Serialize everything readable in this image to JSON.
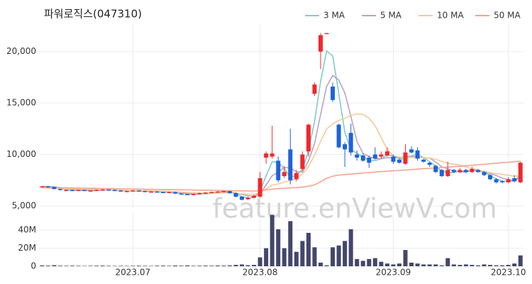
{
  "chart_data": [
    {
      "type": "candlestick",
      "title": "파워로직스(047310)",
      "watermark": "feature.enViewV.com",
      "up_color": "#f0282d",
      "down_color": "#1f63d8",
      "open": [
        6850,
        6900,
        6850,
        6650,
        6550,
        6550,
        6500,
        6550,
        6500,
        6500,
        6550,
        6600,
        6550,
        6500,
        6450,
        6450,
        6500,
        6450,
        6400,
        6400,
        6350,
        6300,
        6350,
        6200,
        6150,
        6100,
        6150,
        6250,
        6300,
        6350,
        6400,
        6450,
        6250,
        5900,
        5650,
        5800,
        5900,
        9700,
        9800,
        9400,
        7900,
        10500,
        7600,
        8600,
        10300,
        15900,
        20000,
        21800,
        16600,
        12900,
        11000,
        12100,
        10000,
        9900,
        9700,
        10000,
        9800,
        9900,
        9800,
        9500,
        9100,
        10500,
        10400,
        9500,
        9200,
        8900,
        8500,
        7900,
        8500,
        8300,
        8500,
        8300,
        8500,
        8300,
        8000,
        7600,
        7400,
        7300,
        7700,
        7300
      ],
      "high": [
        6950,
        6950,
        6900,
        6700,
        6600,
        6600,
        6600,
        6600,
        6550,
        6600,
        6650,
        6650,
        6600,
        6550,
        6500,
        6550,
        6550,
        6500,
        6450,
        6450,
        6400,
        6400,
        6400,
        6250,
        6200,
        6200,
        6300,
        6350,
        6400,
        6450,
        6500,
        6450,
        6300,
        5950,
        5900,
        6100,
        8300,
        10300,
        12800,
        9800,
        8900,
        12500,
        8500,
        10300,
        13000,
        17000,
        21800,
        21800,
        17000,
        13000,
        11200,
        13000,
        10400,
        10100,
        9900,
        10700,
        10300,
        10700,
        10000,
        9600,
        11000,
        10800,
        10700,
        9600,
        9300,
        9000,
        8600,
        9300,
        8600,
        8700,
        8600,
        8800,
        8600,
        8400,
        8100,
        7700,
        7500,
        7800,
        8000,
        9300
      ],
      "low": [
        6800,
        6800,
        6600,
        6500,
        6500,
        6450,
        6450,
        6450,
        6450,
        6450,
        6500,
        6500,
        6450,
        6400,
        6400,
        6400,
        6400,
        6350,
        6350,
        6300,
        6250,
        6250,
        6150,
        6100,
        6050,
        6050,
        6100,
        6200,
        6250,
        6300,
        6350,
        6200,
        5850,
        5550,
        5600,
        5750,
        5800,
        9100,
        9600,
        7300,
        7700,
        7100,
        7400,
        8400,
        9800,
        15700,
        18300,
        21800,
        15100,
        10600,
        8800,
        9900,
        9400,
        9300,
        8700,
        9500,
        9600,
        9800,
        9100,
        9100,
        9000,
        10100,
        9400,
        9200,
        8800,
        8200,
        7800,
        7800,
        8200,
        8200,
        8200,
        8200,
        8200,
        7900,
        7500,
        7200,
        7200,
        7200,
        7300,
        7200
      ],
      "close": [
        6900,
        6850,
        6650,
        6550,
        6550,
        6500,
        6550,
        6500,
        6500,
        6550,
        6600,
        6550,
        6500,
        6450,
        6450,
        6500,
        6450,
        6400,
        6400,
        6350,
        6300,
        6350,
        6200,
        6150,
        6100,
        6150,
        6250,
        6300,
        6350,
        6400,
        6450,
        6250,
        5900,
        5600,
        5800,
        6000,
        7700,
        10100,
        10100,
        7500,
        8300,
        7500,
        8200,
        10000,
        12900,
        16800,
        21600,
        21800,
        15300,
        10700,
        10500,
        10200,
        9700,
        9400,
        9200,
        9600,
        10000,
        10300,
        9300,
        9200,
        10200,
        10200,
        9600,
        9300,
        9000,
        8300,
        7900,
        8500,
        8300,
        8500,
        8300,
        8600,
        8300,
        8000,
        7600,
        7300,
        7300,
        7600,
        7400,
        9200
      ],
      "series": [
        {
          "name": "3 MA",
          "color": "#7fcdc7",
          "values": [
            6900,
            6880,
            6800,
            6683,
            6583,
            6533,
            6533,
            6517,
            6517,
            6517,
            6550,
            6567,
            6550,
            6500,
            6467,
            6467,
            6467,
            6450,
            6417,
            6383,
            6350,
            6333,
            6283,
            6233,
            6150,
            6133,
            6167,
            6233,
            6300,
            6350,
            6400,
            6367,
            6200,
            5917,
            5767,
            5800,
            6500,
            7933,
            9300,
            9233,
            8633,
            7767,
            8000,
            8567,
            10367,
            13233,
            17100,
            20067,
            19567,
            15933,
            12167,
            10467,
            10133,
            9767,
            9433,
            9400,
            9600,
            9967,
            9867,
            9600,
            9567,
            9867,
            10000,
            9700,
            9300,
            8867,
            8400,
            8233,
            8233,
            8433,
            8367,
            8467,
            8400,
            8300,
            7967,
            7633,
            7400,
            7400,
            7433,
            8067
          ]
        },
        {
          "name": "5 MA",
          "color": "#b7a3c9",
          "values": [
            6900,
            6890,
            6850,
            6790,
            6700,
            6620,
            6560,
            6530,
            6520,
            6520,
            6540,
            6540,
            6540,
            6530,
            6510,
            6490,
            6470,
            6450,
            6440,
            6420,
            6380,
            6360,
            6320,
            6270,
            6220,
            6190,
            6170,
            6190,
            6230,
            6290,
            6350,
            6350,
            6270,
            6120,
            6000,
            5910,
            6200,
            7040,
            7940,
            8280,
            8740,
            8700,
            8320,
            8300,
            9380,
            11080,
            13900,
            16620,
            17680,
            17240,
            15980,
            13700,
            11280,
            10100,
            9800,
            9620,
            9580,
            9700,
            9680,
            9680,
            9800,
            9840,
            9700,
            9700,
            9660,
            9280,
            8820,
            8600,
            8400,
            8300,
            8300,
            8440,
            8400,
            8340,
            8160,
            7960,
            7700,
            7560,
            7440,
            7760
          ]
        },
        {
          "name": "10 MA",
          "color": "#f4cb95",
          "values": [
            6750,
            6740,
            6720,
            6700,
            6680,
            6660,
            6650,
            6640,
            6620,
            6610,
            6580,
            6550,
            6535,
            6525,
            6515,
            6515,
            6505,
            6495,
            6485,
            6465,
            6435,
            6415,
            6385,
            6355,
            6320,
            6285,
            6265,
            6255,
            6250,
            6255,
            6270,
            6260,
            6230,
            6175,
            6145,
            6130,
            6275,
            6655,
            7030,
            7140,
            7325,
            7450,
            7680,
            8120,
            8830,
            9910,
            11300,
            12470,
            12990,
            13310,
            13530,
            13800,
            13950,
            13890,
            13520,
            12800,
            11640,
            10490,
            9890,
            9740,
            9710,
            9710,
            9700,
            9690,
            9670,
            9540,
            9330,
            9150,
            9050,
            8980,
            8790,
            8630,
            8500,
            8370,
            8230,
            8130,
            8070,
            7980,
            7890,
            7960
          ]
        },
        {
          "name": "50 MA",
          "color": "#f3a592",
          "values": [
            6800,
            6790,
            6780,
            6770,
            6760,
            6750,
            6740,
            6730,
            6720,
            6710,
            6700,
            6690,
            6680,
            6670,
            6660,
            6650,
            6640,
            6630,
            6620,
            6610,
            6600,
            6590,
            6580,
            6570,
            6560,
            6550,
            6540,
            6530,
            6520,
            6510,
            6500,
            6490,
            6480,
            6470,
            6460,
            6450,
            6480,
            6560,
            6640,
            6680,
            6720,
            6750,
            6790,
            6840,
            6920,
            7050,
            7350,
            7700,
            7900,
            8000,
            8050,
            8100,
            8150,
            8200,
            8250,
            8300,
            8340,
            8380,
            8420,
            8460,
            8500,
            8540,
            8580,
            8620,
            8660,
            8700,
            8740,
            8780,
            8820,
            8860,
            8900,
            8950,
            9000,
            9050,
            9100,
            9150,
            9200,
            9250,
            9300,
            9350
          ]
        }
      ],
      "ylim": [
        4800,
        22600
      ],
      "yticks": [
        {
          "value": 5000,
          "label": "5,000"
        },
        {
          "value": 10000,
          "label": "10,000"
        },
        {
          "value": 15000,
          "label": "15,000"
        },
        {
          "value": 20000,
          "label": "20,000"
        }
      ],
      "grid": true,
      "legend": "top-right"
    },
    {
      "type": "bar",
      "color": "#44466b",
      "categories": [
        null,
        null,
        null,
        null,
        null,
        null,
        null,
        null,
        null,
        null,
        null,
        null,
        null,
        null,
        null,
        "2023.07",
        null,
        null,
        null,
        null,
        null,
        null,
        null,
        null,
        null,
        null,
        null,
        null,
        null,
        null,
        null,
        null,
        null,
        null,
        null,
        null,
        "2023.08",
        null,
        null,
        null,
        null,
        null,
        null,
        null,
        null,
        null,
        null,
        null,
        null,
        null,
        null,
        null,
        null,
        null,
        null,
        null,
        null,
        null,
        "2023.09",
        null,
        null,
        null,
        null,
        null,
        null,
        null,
        null,
        null,
        null,
        null,
        null,
        null,
        null,
        null,
        null,
        null,
        null,
        "2023.10",
        null,
        null
      ],
      "values": [
        900000,
        700000,
        1200000,
        600000,
        500000,
        600000,
        500000,
        400000,
        500000,
        600000,
        700000,
        500000,
        400000,
        500000,
        400000,
        500000,
        600000,
        500000,
        400000,
        600000,
        700000,
        500000,
        800000,
        600000,
        900000,
        500000,
        600000,
        700000,
        600000,
        800000,
        700000,
        900000,
        1500000,
        2000000,
        1200000,
        1500000,
        9800000,
        20000000,
        57000000,
        41000000,
        20000000,
        50000000,
        16000000,
        28000000,
        37000000,
        21000000,
        4000000,
        1000000,
        21000000,
        23000000,
        28000000,
        41000000,
        8000000,
        6000000,
        8000000,
        9000000,
        5000000,
        3000000,
        2000000,
        3000000,
        18000000,
        4000000,
        3000000,
        2000000,
        2000000,
        2000000,
        1000000,
        9000000,
        2000000,
        1500000,
        2000000,
        1500000,
        1000000,
        2000000,
        1500000,
        1000000,
        1000000,
        1500000,
        3000000,
        12000000
      ],
      "ylim": [
        0,
        59000000
      ],
      "yticks": [
        0,
        {
          "value": 20000000,
          "label": "20M"
        },
        {
          "value": 40000000,
          "label": "40M"
        }
      ],
      "grid": true
    }
  ]
}
